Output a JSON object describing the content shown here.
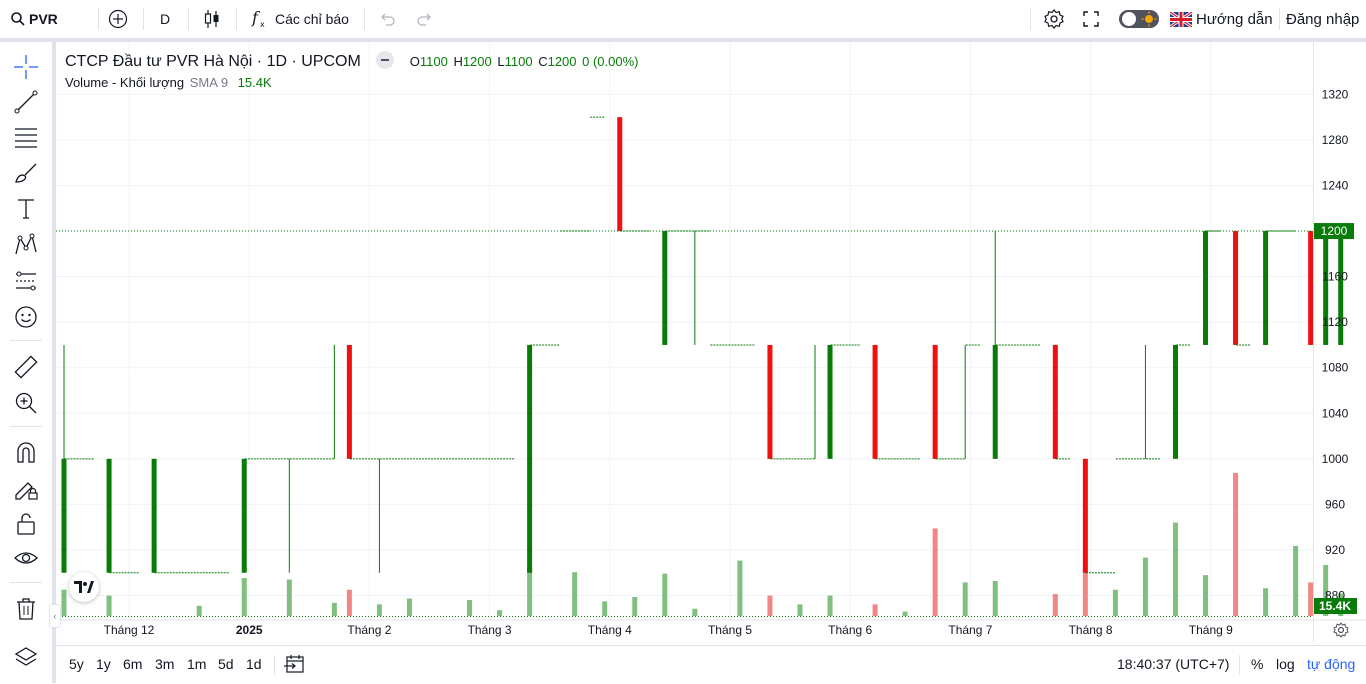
{
  "topbar": {
    "symbol": "PVR",
    "interval": "D",
    "indicators_label": "Các chỉ báo",
    "guide_label": "Hướng dẫn",
    "login_label": "Đăng nhập"
  },
  "legend": {
    "title": "CTCP Đầu tư PVR Hà Nội · 1D · UPCOM",
    "o_label": "O",
    "o_value": "1100",
    "h_label": "H",
    "h_value": "1200",
    "l_label": "L",
    "l_value": "1100",
    "c_label": "C",
    "c_value": "1200",
    "change": "0 (0.00%)",
    "volume_label": "Volume - Khối lượng",
    "sma_label": "SMA 9",
    "volume_value": "15.4K"
  },
  "colors": {
    "up": "#087b08",
    "down": "#f01010",
    "up_volume": "#7fbf7f",
    "down_volume": "#f38585",
    "accent": "#2962ff"
  },
  "bottombar": {
    "ranges": [
      "5y",
      "1y",
      "6m",
      "3m",
      "1m",
      "5d",
      "1d"
    ],
    "time": "18:40:37 (UTC+7)",
    "percent": "%",
    "log": "log",
    "auto": "tự động"
  },
  "chart_data": {
    "type": "candlestick",
    "price_axis": {
      "ticks": [
        880,
        920,
        960,
        1000,
        1040,
        1080,
        1120,
        1160,
        1200,
        1240,
        1280,
        1320
      ],
      "range": [
        862,
        1366
      ]
    },
    "last_price_label": "1200",
    "last_volume_label": "15.4K",
    "time_axis": [
      "Tháng 12",
      "2025",
      "Tháng 2",
      "Tháng 3",
      "Tháng 4",
      "Tháng 5",
      "Tháng 6",
      "Tháng 7",
      "Tháng 8",
      "Tháng 9"
    ],
    "last_price": 1200,
    "candles": [
      {
        "o": 900,
        "h": 1100,
        "l": 900,
        "c": 1000,
        "v": 18
      },
      {
        "o": 1000,
        "h": 1000,
        "l": 1000,
        "c": 1000,
        "v": 0
      },
      {
        "o": 1000,
        "h": 1000,
        "l": 1000,
        "c": 1000,
        "v": 0
      },
      {
        "o": 900,
        "h": 1000,
        "l": 900,
        "c": 1000,
        "v": 14
      },
      {
        "o": 900,
        "h": 900,
        "l": 900,
        "c": 900,
        "v": 0
      },
      {
        "o": 900,
        "h": 900,
        "l": 900,
        "c": 900,
        "v": 0
      },
      {
        "o": 900,
        "h": 1000,
        "l": 900,
        "c": 1000,
        "v": 0
      },
      {
        "o": 900,
        "h": 900,
        "l": 900,
        "c": 900,
        "v": 0
      },
      {
        "o": 900,
        "h": 900,
        "l": 900,
        "c": 900,
        "v": 0
      },
      {
        "o": 900,
        "h": 900,
        "l": 900,
        "c": 900,
        "v": 7
      },
      {
        "o": 900,
        "h": 900,
        "l": 900,
        "c": 900,
        "v": 0
      },
      {
        "o": 900,
        "h": 900,
        "l": 900,
        "c": 900,
        "v": 0
      },
      {
        "o": 900,
        "h": 1000,
        "l": 900,
        "c": 1000,
        "v": 26
      },
      {
        "o": 1000,
        "h": 1000,
        "l": 1000,
        "c": 1000,
        "v": 0
      },
      {
        "o": 1000,
        "h": 1000,
        "l": 1000,
        "c": 1000,
        "v": 0
      },
      {
        "o": 1000,
        "h": 1000,
        "l": 900,
        "c": 1000,
        "v": 25
      },
      {
        "o": 1000,
        "h": 1000,
        "l": 1000,
        "c": 1000,
        "v": 0
      },
      {
        "o": 1000,
        "h": 1000,
        "l": 1000,
        "c": 1000,
        "v": 0
      },
      {
        "o": 1000,
        "h": 1100,
        "l": 1000,
        "c": 1000,
        "v": 9
      },
      {
        "o": 1100,
        "h": 1100,
        "l": 1000,
        "c": 1000,
        "v": 18
      },
      {
        "o": 1000,
        "h": 1000,
        "l": 1000,
        "c": 1000,
        "v": 0
      },
      {
        "o": 1000,
        "h": 1000,
        "l": 900,
        "c": 1000,
        "v": 8
      },
      {
        "o": 1000,
        "h": 1000,
        "l": 1000,
        "c": 1000,
        "v": 0
      },
      {
        "o": 1000,
        "h": 1000,
        "l": 1000,
        "c": 1000,
        "v": 12
      },
      {
        "o": 1000,
        "h": 1000,
        "l": 1000,
        "c": 1000,
        "v": 0
      },
      {
        "o": 1000,
        "h": 1000,
        "l": 1000,
        "c": 1000,
        "v": 0
      },
      {
        "o": 1000,
        "h": 1000,
        "l": 1000,
        "c": 1000,
        "v": 0
      },
      {
        "o": 1000,
        "h": 1000,
        "l": 1000,
        "c": 1000,
        "v": 11
      },
      {
        "o": 1000,
        "h": 1000,
        "l": 1000,
        "c": 1000,
        "v": 0
      },
      {
        "o": 1000,
        "h": 1000,
        "l": 1000,
        "c": 1000,
        "v": 4
      },
      {
        "o": 1000,
        "h": 1000,
        "l": 1000,
        "c": 1000,
        "v": 0
      },
      {
        "o": 900,
        "h": 1100,
        "l": 900,
        "c": 1100,
        "v": 33
      },
      {
        "o": 1100,
        "h": 1100,
        "l": 1100,
        "c": 1100,
        "v": 0
      },
      {
        "o": 1100,
        "h": 1100,
        "l": 1100,
        "c": 1100,
        "v": 0
      },
      {
        "o": 1200,
        "h": 1200,
        "l": 1200,
        "c": 1200,
        "v": 30
      },
      {
        "o": 1200,
        "h": 1200,
        "l": 1200,
        "c": 1200,
        "v": 0
      },
      {
        "o": 1300,
        "h": 1300,
        "l": 1300,
        "c": 1300,
        "v": 10
      },
      {
        "o": 1300,
        "h": 1300,
        "l": 1200,
        "c": 1200,
        "v": 0
      },
      {
        "o": 1200,
        "h": 1200,
        "l": 1200,
        "c": 1200,
        "v": 13
      },
      {
        "o": 1200,
        "h": 1200,
        "l": 1200,
        "c": 1200,
        "v": 0
      },
      {
        "o": 1100,
        "h": 1200,
        "l": 1100,
        "c": 1200,
        "v": 29
      },
      {
        "o": 1200,
        "h": 1200,
        "l": 1200,
        "c": 1200,
        "v": 0
      },
      {
        "o": 1200,
        "h": 1200,
        "l": 1100,
        "c": 1200,
        "v": 5
      },
      {
        "o": 1200,
        "h": 1200,
        "l": 1200,
        "c": 1200,
        "v": 0
      },
      {
        "o": 1100,
        "h": 1100,
        "l": 1100,
        "c": 1100,
        "v": 0
      },
      {
        "o": 1100,
        "h": 1100,
        "l": 1100,
        "c": 1100,
        "v": 38
      },
      {
        "o": 1100,
        "h": 1100,
        "l": 1100,
        "c": 1100,
        "v": 0
      },
      {
        "o": 1100,
        "h": 1100,
        "l": 1000,
        "c": 1000,
        "v": 14
      },
      {
        "o": 1000,
        "h": 1000,
        "l": 1000,
        "c": 1000,
        "v": 0
      },
      {
        "o": 1000,
        "h": 1000,
        "l": 1000,
        "c": 1000,
        "v": 8
      },
      {
        "o": 1000,
        "h": 1100,
        "l": 1000,
        "c": 1000,
        "v": 0
      },
      {
        "o": 1000,
        "h": 1100,
        "l": 1000,
        "c": 1100,
        "v": 14
      },
      {
        "o": 1100,
        "h": 1100,
        "l": 1100,
        "c": 1100,
        "v": 0
      },
      {
        "o": 1100,
        "h": 1100,
        "l": 1100,
        "c": 1100,
        "v": 0
      },
      {
        "o": 1100,
        "h": 1100,
        "l": 1000,
        "c": 1000,
        "v": 8
      },
      {
        "o": 1000,
        "h": 1000,
        "l": 1000,
        "c": 1000,
        "v": 0
      },
      {
        "o": 1000,
        "h": 1000,
        "l": 1000,
        "c": 1000,
        "v": 3
      },
      {
        "o": 1000,
        "h": 1000,
        "l": 1000,
        "c": 1000,
        "v": 0
      },
      {
        "o": 1100,
        "h": 1100,
        "l": 1000,
        "c": 1000,
        "v": 60
      },
      {
        "o": 1000,
        "h": 1000,
        "l": 1000,
        "c": 1000,
        "v": 0
      },
      {
        "o": 1000,
        "h": 1100,
        "l": 1000,
        "c": 1000,
        "v": 23
      },
      {
        "o": 1100,
        "h": 1100,
        "l": 1100,
        "c": 1100,
        "v": 0
      },
      {
        "o": 1000,
        "h": 1200,
        "l": 1000,
        "c": 1100,
        "v": 24
      },
      {
        "o": 1100,
        "h": 1100,
        "l": 1100,
        "c": 1100,
        "v": 0
      },
      {
        "o": 1100,
        "h": 1100,
        "l": 1100,
        "c": 1100,
        "v": 0
      },
      {
        "o": 1100,
        "h": 1100,
        "l": 1100,
        "c": 1100,
        "v": 0
      },
      {
        "o": 1100,
        "h": 1100,
        "l": 1000,
        "c": 1000,
        "v": 15
      },
      {
        "o": 1000,
        "h": 1000,
        "l": 1000,
        "c": 1000,
        "v": 0
      },
      {
        "o": 1000,
        "h": 1000,
        "l": 900,
        "c": 900,
        "v": 31
      },
      {
        "o": 900,
        "h": 900,
        "l": 900,
        "c": 900,
        "v": 0
      },
      {
        "o": 900,
        "h": 900,
        "l": 900,
        "c": 900,
        "v": 18
      },
      {
        "o": 1000,
        "h": 1000,
        "l": 1000,
        "c": 1000,
        "v": 0
      },
      {
        "o": 1000,
        "h": 1100,
        "l": 1000,
        "c": 1000,
        "v": 40
      },
      {
        "o": 1000,
        "h": 1000,
        "l": 1000,
        "c": 1000,
        "v": 0
      },
      {
        "o": 1000,
        "h": 1100,
        "l": 1000,
        "c": 1100,
        "v": 64
      },
      {
        "o": 1100,
        "h": 1100,
        "l": 1100,
        "c": 1100,
        "v": 0
      },
      {
        "o": 1100,
        "h": 1200,
        "l": 1100,
        "c": 1200,
        "v": 28
      },
      {
        "o": 1200,
        "h": 1200,
        "l": 1200,
        "c": 1200,
        "v": 0
      },
      {
        "o": 1200,
        "h": 1200,
        "l": 1100,
        "c": 1100,
        "v": 98
      },
      {
        "o": 1100,
        "h": 1100,
        "l": 1100,
        "c": 1100,
        "v": 0
      },
      {
        "o": 1100,
        "h": 1200,
        "l": 1100,
        "c": 1200,
        "v": 19
      },
      {
        "o": 1200,
        "h": 1200,
        "l": 1200,
        "c": 1200,
        "v": 0
      },
      {
        "o": 1200,
        "h": 1200,
        "l": 1200,
        "c": 1200,
        "v": 48
      },
      {
        "o": 1200,
        "h": 1200,
        "l": 1100,
        "c": 1100,
        "v": 23
      },
      {
        "o": 1100,
        "h": 1200,
        "l": 1100,
        "c": 1200,
        "v": 35
      },
      {
        "o": 1100,
        "h": 1200,
        "l": 1100,
        "c": 1200,
        "v": 15.4
      }
    ]
  }
}
